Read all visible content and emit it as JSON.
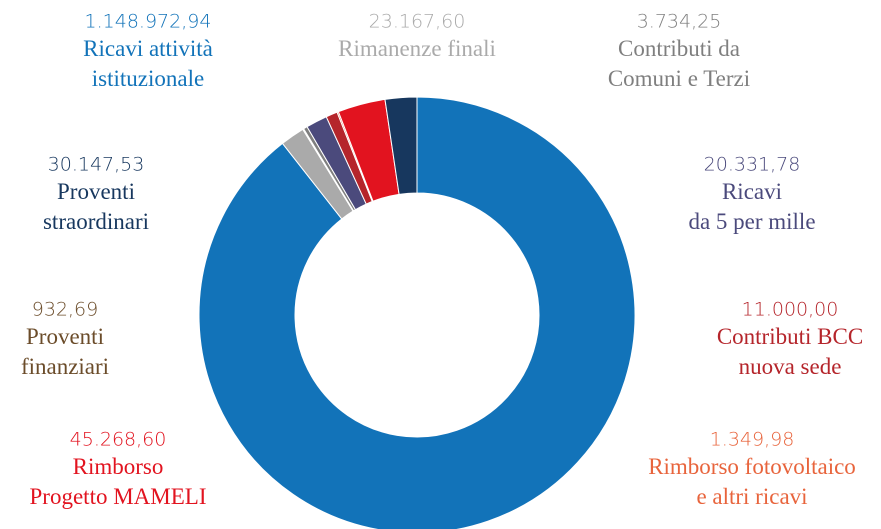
{
  "chart_data": {
    "type": "donut",
    "categories": [
      "Ricavi attività\nistituzionale",
      "Rimanenze finali",
      "Proventi\nfinanziari",
      "Contributi da\nComuni e Terzi",
      "Ricavi\nda 5 per mille",
      "Contributi BCC\nnuova sede",
      "Rimborso fotovoltaico\ne altri ricavi",
      "Rimborso\nProgetto MAMELI",
      "Proventi\nstraordinari"
    ],
    "values": [
      1148972.94,
      23167.6,
      932.69,
      3734.25,
      20331.78,
      11000.0,
      1349.98,
      45268.6,
      30147.53
    ],
    "value_labels": [
      "1.148.972,94",
      "23.167,60",
      "932,69",
      "3.734,25",
      "20.331,78",
      "11.000,00",
      "1.349,98",
      "45.268,60",
      "30.147,53"
    ],
    "colors": [
      "#1273b9",
      "#aaaaaa",
      "#6b4c2a",
      "#7f7f7f",
      "#4b4a7c",
      "#b5252b",
      "#e8643c",
      "#e2131f",
      "#17375e"
    ]
  }
}
